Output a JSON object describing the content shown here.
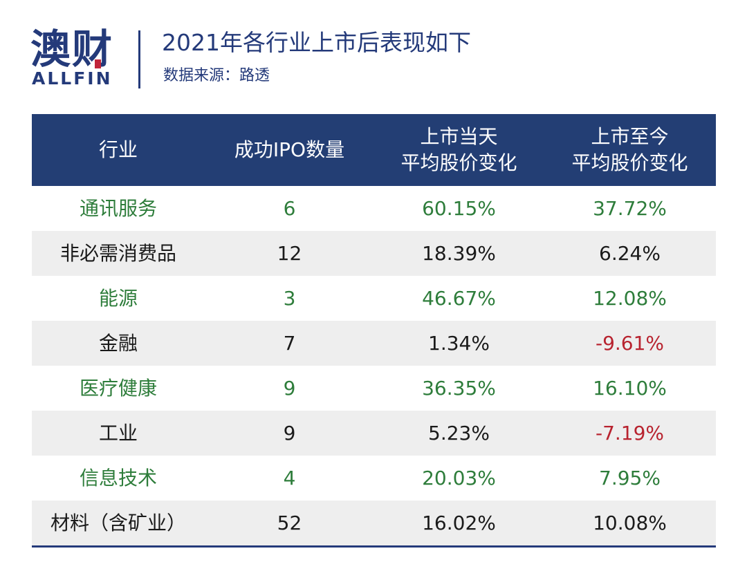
{
  "logo": {
    "cn": "澳财",
    "en": "ALLFIN"
  },
  "title": "2021年各行业上市后表现如下",
  "subtitle": "数据来源：路透",
  "watermark": {
    "cn": "澳财",
    "en": "ALLFIN"
  },
  "table": {
    "headers": {
      "industry": "行业",
      "ipo_count": "成功IPO数量",
      "first_day_line1": "上市当天",
      "first_day_line2": "平均股价变化",
      "to_date_line1": "上市至今",
      "to_date_line2": "平均股价变化"
    },
    "rows": [
      {
        "industry": "通讯服务",
        "ipo_count": "6",
        "first_day": "60.15%",
        "to_date": "37.72%"
      },
      {
        "industry": "非必需消费品",
        "ipo_count": "12",
        "first_day": "18.39%",
        "to_date": "6.24%"
      },
      {
        "industry": "能源",
        "ipo_count": "3",
        "first_day": "46.67%",
        "to_date": "12.08%"
      },
      {
        "industry": "金融",
        "ipo_count": "7",
        "first_day": "1.34%",
        "to_date": "-9.61%"
      },
      {
        "industry": "医疗健康",
        "ipo_count": "9",
        "first_day": "36.35%",
        "to_date": "16.10%"
      },
      {
        "industry": "工业",
        "ipo_count": "9",
        "first_day": "5.23%",
        "to_date": "-7.19%"
      },
      {
        "industry": "信息技术",
        "ipo_count": "4",
        "first_day": "20.03%",
        "to_date": "7.95%"
      },
      {
        "industry": "材料（含矿业）",
        "ipo_count": "52",
        "first_day": "16.02%",
        "to_date": "10.08%"
      }
    ]
  },
  "colors": {
    "brand_navy": "#233e74",
    "positive_green": "#2e7d3b",
    "negative_red": "#b8232f",
    "stripe_gray": "#eeeeee"
  }
}
